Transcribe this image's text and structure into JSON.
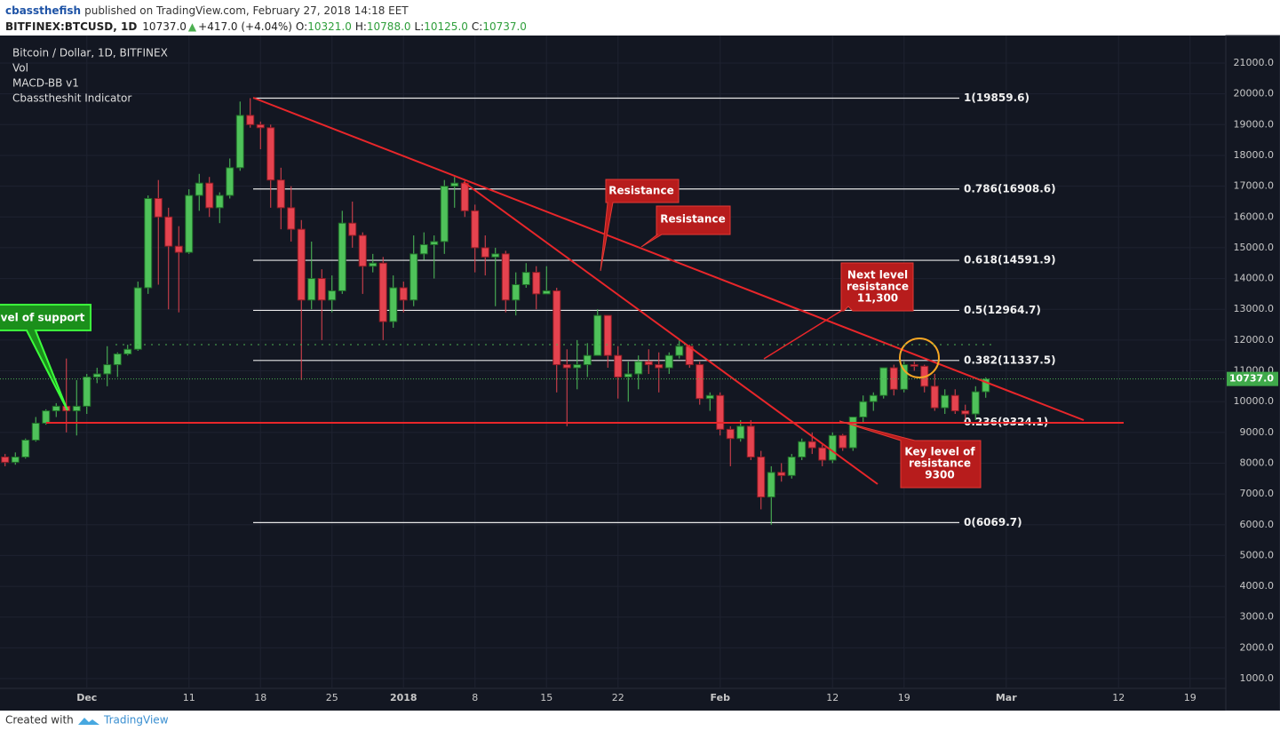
{
  "header": {
    "author": "cbassthefish",
    "published": "published on TradingView.com, February 27, 2018 14:18 EET",
    "symbol": "BITFINEX:BTCUSD, 1D",
    "price": "10737.0",
    "arrow": "▲",
    "change": "+417.0 (+4.04%)",
    "ohlc": [
      {
        "key": "O:",
        "value": "10321.0"
      },
      {
        "key": "H:",
        "value": "10788.0"
      },
      {
        "key": "L:",
        "value": "10125.0"
      },
      {
        "key": "C:",
        "value": "10737.0"
      }
    ]
  },
  "chart_data": {
    "type": "candlestick",
    "title": "Bitcoin / Dollar, 1D, BITFINEX",
    "indicators": [
      "Vol",
      "MACD-BB v1",
      "Cbasstheshit Indicator"
    ],
    "up_color": "#4fc25a",
    "down_color": "#e5434f",
    "ylim": [
      683,
      21895
    ],
    "xlim": [
      -0.5,
      119.5
    ],
    "yticks": [
      {
        "value": 1000,
        "label": "1000.0"
      },
      {
        "value": 2000,
        "label": "2000.0"
      },
      {
        "value": 3000,
        "label": "3000.0"
      },
      {
        "value": 4000,
        "label": "4000.0"
      },
      {
        "value": 5000,
        "label": "5000.0"
      },
      {
        "value": 6000,
        "label": "6000.0"
      },
      {
        "value": 7000,
        "label": "7000.0"
      },
      {
        "value": 8000,
        "label": "8000.0"
      },
      {
        "value": 9000,
        "label": "9000.0"
      },
      {
        "value": 10000,
        "label": "10000.0"
      },
      {
        "value": 11000,
        "label": "11000.0"
      },
      {
        "value": 12000,
        "label": "12000.0"
      },
      {
        "value": 13000,
        "label": "13000.0"
      },
      {
        "value": 14000,
        "label": "14000.0"
      },
      {
        "value": 15000,
        "label": "15000.0"
      },
      {
        "value": 16000,
        "label": "16000.0"
      },
      {
        "value": 17000,
        "label": "17000.0"
      },
      {
        "value": 18000,
        "label": "18000.0"
      },
      {
        "value": 19000,
        "label": "19000.0"
      },
      {
        "value": 20000,
        "label": "20000.0"
      },
      {
        "value": 21000,
        "label": "21000.0"
      }
    ],
    "xticks": [
      {
        "value": 8,
        "label": "Dec"
      },
      {
        "value": 18,
        "label": "11"
      },
      {
        "value": 25,
        "label": "18"
      },
      {
        "value": 32,
        "label": "25"
      },
      {
        "value": 39,
        "label": "2018"
      },
      {
        "value": 46,
        "label": "8"
      },
      {
        "value": 53,
        "label": "15"
      },
      {
        "value": 60,
        "label": "22"
      },
      {
        "value": 70,
        "label": "Feb"
      },
      {
        "value": 81,
        "label": "12"
      },
      {
        "value": 88,
        "label": "19"
      },
      {
        "value": 98,
        "label": "Mar"
      },
      {
        "value": 109,
        "label": "12"
      },
      {
        "value": 116,
        "label": "19"
      }
    ],
    "last_price": {
      "value": 10737,
      "label": "10737.0"
    },
    "fib": [
      {
        "value": 19859.6,
        "label": "1(19859.6)"
      },
      {
        "value": 16908.6,
        "label": "0.786(16908.6)"
      },
      {
        "value": 14591.9,
        "label": "0.618(14591.9)"
      },
      {
        "value": 12964.7,
        "label": "0.5(12964.7)"
      },
      {
        "value": 11337.5,
        "label": "0.382(11337.5)"
      },
      {
        "value": 9324.1,
        "label": "0.236(9324.1)"
      },
      {
        "value": 6069.7,
        "label": "0(6069.7)"
      }
    ],
    "annotations": {
      "resistance_1": "Resistance",
      "resistance_2": "Resistance",
      "support": "vel of support",
      "next_level": [
        "Next level",
        "resistance",
        "11,300"
      ],
      "key_level": [
        "Key level of",
        "resistance",
        "9300"
      ]
    },
    "ohlc": [
      [
        8200,
        8300,
        7900,
        8030
      ],
      [
        8030,
        8350,
        7950,
        8200
      ],
      [
        8200,
        8800,
        8150,
        8750
      ],
      [
        8750,
        9500,
        8700,
        9300
      ],
      [
        9300,
        9750,
        9250,
        9700
      ],
      [
        9700,
        9950,
        9500,
        9850
      ],
      [
        9850,
        11400,
        9000,
        9700
      ],
      [
        9700,
        10700,
        8900,
        9850
      ],
      [
        9850,
        10900,
        9600,
        10800
      ],
      [
        10800,
        11100,
        10600,
        10900
      ],
      [
        10900,
        11800,
        10500,
        11200
      ],
      [
        11200,
        11600,
        10800,
        11550
      ],
      [
        11550,
        11850,
        11500,
        11700
      ],
      [
        11700,
        13900,
        11650,
        13700
      ],
      [
        13700,
        16700,
        13500,
        16600
      ],
      [
        16600,
        17200,
        13800,
        16000
      ],
      [
        16000,
        16300,
        13000,
        15050
      ],
      [
        15050,
        15700,
        12900,
        14850
      ],
      [
        14850,
        16900,
        14800,
        16700
      ],
      [
        16700,
        17400,
        16200,
        17100
      ],
      [
        17100,
        17300,
        16000,
        16300
      ],
      [
        16300,
        16800,
        15800,
        16700
      ],
      [
        16700,
        17900,
        16600,
        17600
      ],
      [
        17600,
        19750,
        17500,
        19300
      ],
      [
        19300,
        19860,
        18900,
        19000
      ],
      [
        19000,
        19100,
        18200,
        18900
      ],
      [
        18900,
        19000,
        16300,
        17200
      ],
      [
        17200,
        17600,
        15600,
        16300
      ],
      [
        16300,
        17000,
        15200,
        15600
      ],
      [
        15600,
        15900,
        10700,
        13300
      ],
      [
        13300,
        15200,
        13000,
        14000
      ],
      [
        14000,
        14300,
        12000,
        13300
      ],
      [
        13300,
        14100,
        12900,
        13600
      ],
      [
        13600,
        16200,
        13500,
        15800
      ],
      [
        15800,
        16500,
        15000,
        15400
      ],
      [
        15400,
        15500,
        13500,
        14400
      ],
      [
        14400,
        14800,
        14200,
        14500
      ],
      [
        14500,
        14700,
        12000,
        12600
      ],
      [
        12600,
        14100,
        12400,
        13700
      ],
      [
        13700,
        13900,
        12900,
        13300
      ],
      [
        13300,
        15400,
        13100,
        14800
      ],
      [
        14800,
        15500,
        14600,
        15100
      ],
      [
        15100,
        15400,
        14000,
        15200
      ],
      [
        15200,
        17200,
        14800,
        17000
      ],
      [
        17000,
        17300,
        16300,
        17100
      ],
      [
        17100,
        17200,
        16000,
        16200
      ],
      [
        16200,
        16400,
        14200,
        15000
      ],
      [
        15000,
        15400,
        14100,
        14700
      ],
      [
        14700,
        15000,
        13100,
        14800
      ],
      [
        14800,
        14900,
        12900,
        13300
      ],
      [
        13300,
        14200,
        12800,
        13800
      ],
      [
        13800,
        14500,
        13700,
        14200
      ],
      [
        14200,
        14400,
        13000,
        13500
      ],
      [
        13500,
        14400,
        13500,
        13600
      ],
      [
        13600,
        13700,
        10300,
        11200
      ],
      [
        11200,
        11700,
        9200,
        11100
      ],
      [
        11100,
        12000,
        10400,
        11200
      ],
      [
        11200,
        11900,
        10800,
        11500
      ],
      [
        11500,
        13000,
        11500,
        12800
      ],
      [
        12800,
        12800,
        11100,
        11500
      ],
      [
        11500,
        11800,
        10100,
        10800
      ],
      [
        10800,
        11300,
        10000,
        10900
      ],
      [
        10900,
        11500,
        10400,
        11300
      ],
      [
        11300,
        11700,
        10900,
        11200
      ],
      [
        11200,
        11600,
        10300,
        11100
      ],
      [
        11100,
        11600,
        10900,
        11500
      ],
      [
        11500,
        12000,
        11400,
        11800
      ],
      [
        11800,
        11850,
        11100,
        11200
      ],
      [
        11200,
        11300,
        9900,
        10100
      ],
      [
        10100,
        10300,
        9700,
        10200
      ],
      [
        10200,
        10300,
        8900,
        9100
      ],
      [
        9100,
        9200,
        7900,
        8800
      ],
      [
        8800,
        9400,
        8700,
        9200
      ],
      [
        9200,
        9400,
        8100,
        8200
      ],
      [
        8200,
        8400,
        6500,
        6900
      ],
      [
        6900,
        7900,
        6000,
        7700
      ],
      [
        7700,
        8000,
        7400,
        7600
      ],
      [
        7600,
        8300,
        7500,
        8200
      ],
      [
        8200,
        8800,
        8100,
        8700
      ],
      [
        8700,
        9000,
        8300,
        8500
      ],
      [
        8500,
        8600,
        7900,
        8100
      ],
      [
        8100,
        9000,
        8000,
        8900
      ],
      [
        8900,
        8950,
        8400,
        8500
      ],
      [
        8500,
        9500,
        8400,
        9500
      ],
      [
        9500,
        10200,
        9300,
        10000
      ],
      [
        10000,
        10300,
        9700,
        10200
      ],
      [
        10200,
        11100,
        10100,
        11100
      ],
      [
        11100,
        11200,
        10200,
        10400
      ],
      [
        10400,
        11300,
        10300,
        11200
      ],
      [
        11200,
        11300,
        11000,
        11150
      ],
      [
        11150,
        11200,
        10300,
        10500
      ],
      [
        10500,
        10900,
        9700,
        9800
      ],
      [
        9800,
        10400,
        9600,
        10200
      ],
      [
        10200,
        10400,
        9600,
        9700
      ],
      [
        9700,
        9900,
        9400,
        9600
      ],
      [
        9600,
        10500,
        9400,
        10320
      ],
      [
        10321,
        10788,
        10125,
        10737
      ]
    ]
  },
  "footer": {
    "created": "Created with",
    "brand": "TradingView"
  }
}
